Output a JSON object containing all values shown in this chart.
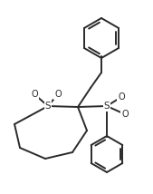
{
  "line_color": "#2a2a2a",
  "line_width": 1.4,
  "fig_width": 1.69,
  "fig_height": 2.14,
  "dpi": 100,
  "xlim": [
    0,
    169
  ],
  "ylim": [
    0,
    214
  ]
}
